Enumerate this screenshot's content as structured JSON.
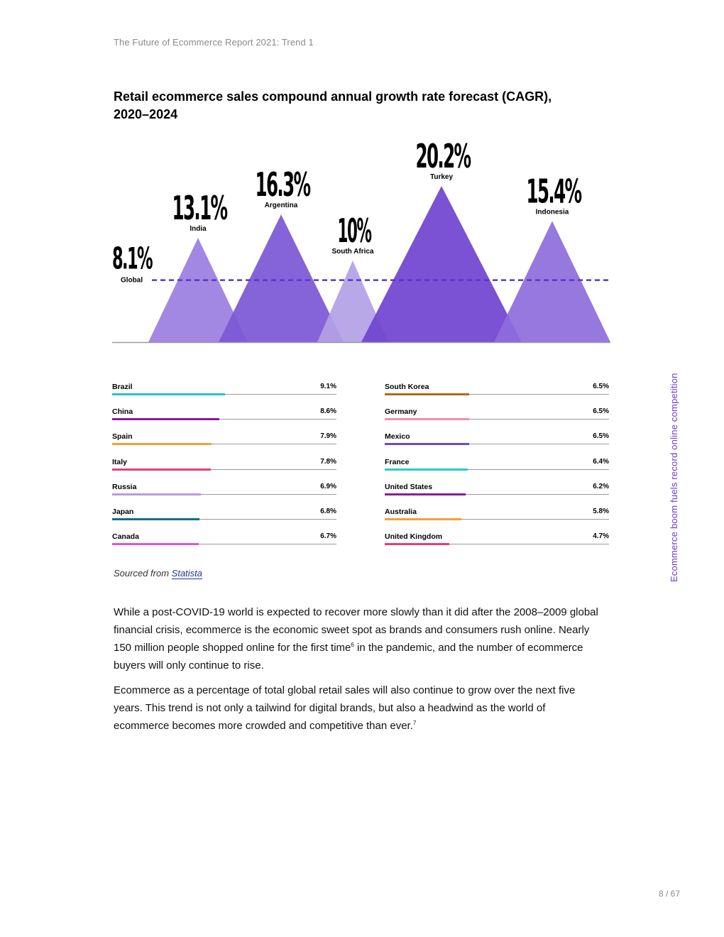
{
  "header": {
    "running_title": "The Future of Ecommerce Report 2021: Trend 1"
  },
  "side_label": "Ecommerce boom fuels record online competition",
  "chart_title": "Retail ecommerce sales compound annual growth rate forecast (CAGR), 2020–2024",
  "chart_data": [
    {
      "type": "area",
      "title": "Retail ecommerce sales compound annual growth rate forecast (CAGR), 2020–2024",
      "reference_line": {
        "label": "Global",
        "value": 8.1,
        "display": "8.1%"
      },
      "categories": [
        "India",
        "Argentina",
        "South Africa",
        "Turkey",
        "Indonesia"
      ],
      "values": [
        13.1,
        16.3,
        10,
        20.2,
        15.4
      ],
      "display_values": [
        "13.1%",
        "16.3%",
        "10%",
        "20.2%",
        "15.4%"
      ],
      "colors": [
        "#9a7ee0",
        "#7b57d6",
        "#b3a1e6",
        "#6f43cf",
        "#8e6cdc"
      ],
      "line_color": "#5a35c8"
    },
    {
      "type": "bar",
      "categories": [
        "Brazil",
        "China",
        "Spain",
        "Italy",
        "Russia",
        "Japan",
        "Canada"
      ],
      "values": [
        9.1,
        8.6,
        7.9,
        7.8,
        6.9,
        6.8,
        6.7
      ],
      "display_values": [
        "9.1%",
        "8.6%",
        "7.9%",
        "7.8%",
        "6.9%",
        "6.8%",
        "6.7%"
      ],
      "colors": [
        "#2bbde0",
        "#8a1a9b",
        "#f0a23a",
        "#e0407a",
        "#b89be6",
        "#0c6f87",
        "#d45ad8"
      ]
    },
    {
      "type": "bar",
      "categories": [
        "South Korea",
        "Germany",
        "Mexico",
        "France",
        "United States",
        "Australia",
        "United Kingdom"
      ],
      "values": [
        6.5,
        6.5,
        6.5,
        6.4,
        6.2,
        5.8,
        4.7
      ],
      "display_values": [
        "6.5%",
        "6.5%",
        "6.5%",
        "6.4%",
        "6.2%",
        "5.8%",
        "4.7%"
      ],
      "colors": [
        "#b06a1a",
        "#f08fb0",
        "#6a4ad0",
        "#2bc8d0",
        "#8a1a9b",
        "#f0a23a",
        "#e0407a"
      ]
    }
  ],
  "source": {
    "prefix": "Sourced from ",
    "link_text": "Statista"
  },
  "paragraphs": {
    "p1_part1": "While a post-COVID-19 world is expected to recover more slowly than it did after the 2008–2009 global financial crisis, ecommerce is the economic sweet spot as brands and consumers rush online. Nearly 150 million people shopped online for the first time",
    "p1_sup": "6",
    "p1_part2": " in the pandemic, and the number of ecommerce buyers will only continue to rise.",
    "p2_part1": "Ecommerce as a percentage of total global retail sales will also continue to grow over the next five years. This trend is not only a tailwind for digital brands, but also a headwind as the world of ecommerce becomes more crowded and competitive than ever.",
    "p2_sup": "7"
  },
  "page_number": "8 / 67"
}
